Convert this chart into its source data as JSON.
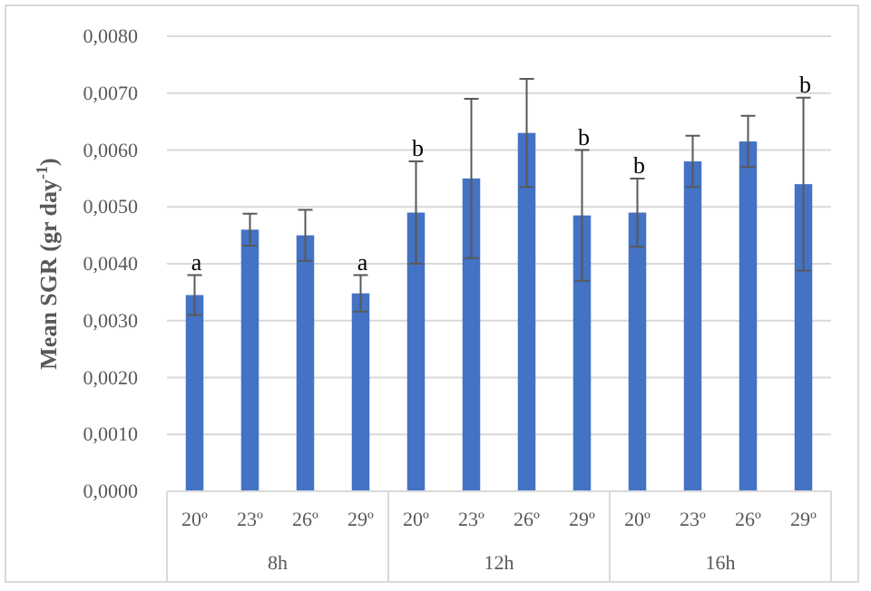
{
  "chart_data": {
    "type": "bar",
    "ylabel": "Mean SGR (gr day$^{-1}$)",
    "categories": [
      "20º",
      "23º",
      "26º",
      "29º",
      "20º",
      "23º",
      "26º",
      "29º",
      "20º",
      "23º",
      "26º",
      "29º"
    ],
    "values": [
      0.00345,
      0.0046,
      0.0045,
      0.00348,
      0.0049,
      0.0055,
      0.0063,
      0.00485,
      0.0049,
      0.0058,
      0.00615,
      0.0054
    ],
    "errors": [
      0.00035,
      0.00028,
      0.00045,
      0.00032,
      0.0009,
      0.0014,
      0.00095,
      0.00115,
      0.0006,
      0.00045,
      0.00045,
      0.00152
    ],
    "color": "#4472c4",
    "ylim": [
      0,
      0.008
    ],
    "yticks": [
      {
        "value": 0,
        "label": "0,0000"
      },
      {
        "value": 0.001,
        "label": "0,0010"
      },
      {
        "value": 0.002,
        "label": "0,0020"
      },
      {
        "value": 0.003,
        "label": "0,0030"
      },
      {
        "value": 0.004,
        "label": "0,0040"
      },
      {
        "value": 0.005,
        "label": "0,0050"
      },
      {
        "value": 0.006,
        "label": "0,0060"
      },
      {
        "value": 0.007,
        "label": "0,0070"
      },
      {
        "value": 0.008,
        "label": "0,0080"
      }
    ],
    "grid": "y",
    "annotations": [
      {
        "text": "a",
        "x": "20º",
        "y": 0.0038
      },
      {
        "text": "a",
        "x": "29º",
        "y": 0.0038
      },
      {
        "text": "b",
        "y": 0.0058
      },
      {
        "text": "b",
        "y": 0.006
      },
      {
        "text": "b",
        "y": 0.0055
      },
      {
        "text": "b",
        "y": 0.00692
      },
      "8h",
      "12h",
      "16h"
    ]
  }
}
